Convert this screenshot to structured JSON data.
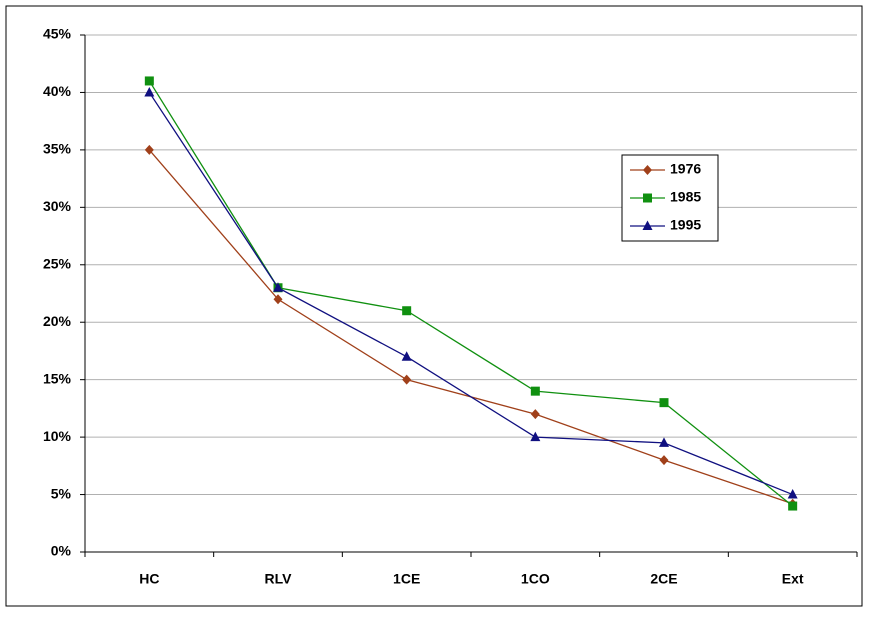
{
  "chart_data": {
    "type": "line",
    "categories": [
      "HC",
      "RLV",
      "1CE",
      "1CO",
      "2CE",
      "Ext"
    ],
    "series": [
      {
        "name": "1976",
        "color": "#a0401a",
        "marker": "diamond",
        "values": [
          35,
          22,
          15,
          12,
          8,
          4.2
        ]
      },
      {
        "name": "1985",
        "color": "#109010",
        "marker": "square",
        "values": [
          41,
          23,
          21,
          14,
          13,
          4
        ]
      },
      {
        "name": "1995",
        "color": "#101080",
        "marker": "triangle",
        "values": [
          40,
          23,
          17,
          10,
          9.5,
          5
        ]
      }
    ],
    "ylim": [
      0,
      45
    ],
    "yticks": [
      {
        "value": 0,
        "label": "0%"
      },
      {
        "value": 5,
        "label": "5%"
      },
      {
        "value": 10,
        "label": "10%"
      },
      {
        "value": 15,
        "label": "15%"
      },
      {
        "value": 20,
        "label": "20%"
      },
      {
        "value": 25,
        "label": "25%"
      },
      {
        "value": 30,
        "label": "30%"
      },
      {
        "value": 35,
        "label": "35%"
      },
      {
        "value": 40,
        "label": "40%"
      },
      {
        "value": 45,
        "label": "45%"
      }
    ],
    "grid": true
  }
}
